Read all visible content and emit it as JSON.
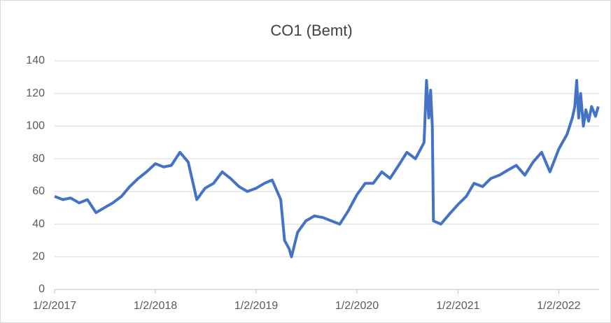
{
  "chart_data": {
    "type": "line",
    "title": "CO1  (Bemt)",
    "x": [
      "2017-01-02",
      "2017-02-01",
      "2017-03-01",
      "2017-04-01",
      "2017-05-01",
      "2017-06-01",
      "2017-07-01",
      "2017-08-01",
      "2017-09-01",
      "2017-10-01",
      "2017-11-01",
      "2017-12-01",
      "2018-01-02",
      "2018-02-01",
      "2018-03-01",
      "2018-04-01",
      "2018-05-01",
      "2018-06-01",
      "2018-07-01",
      "2018-08-01",
      "2018-09-01",
      "2018-10-01",
      "2018-11-01",
      "2018-12-01",
      "2019-01-02",
      "2019-02-01",
      "2019-03-01",
      "2019-04-01",
      "2019-04-15",
      "2019-05-01",
      "2019-05-10",
      "2019-06-01",
      "2019-07-01",
      "2019-08-01",
      "2019-09-01",
      "2019-10-01",
      "2019-11-01",
      "2019-12-01",
      "2020-01-02",
      "2020-02-01",
      "2020-03-01",
      "2020-04-01",
      "2020-05-01",
      "2020-06-01",
      "2020-07-01",
      "2020-08-01",
      "2020-09-01",
      "2020-09-10",
      "2020-09-18",
      "2020-09-25",
      "2020-10-01",
      "2020-10-05",
      "2020-11-01",
      "2020-12-01",
      "2021-01-02",
      "2021-02-01",
      "2021-03-01",
      "2021-04-01",
      "2021-05-01",
      "2021-06-01",
      "2021-07-01",
      "2021-08-01",
      "2021-09-01",
      "2021-10-01",
      "2021-11-01",
      "2021-12-01",
      "2022-01-02",
      "2022-02-01",
      "2022-02-20",
      "2022-03-01",
      "2022-03-08",
      "2022-03-15",
      "2022-03-22",
      "2022-04-01",
      "2022-04-10",
      "2022-04-20",
      "2022-05-01",
      "2022-05-15",
      "2022-05-25"
    ],
    "series": [
      {
        "name": "CO1",
        "color": "#4472c4",
        "values": [
          57,
          55,
          56,
          53,
          55,
          47,
          50,
          53,
          57,
          63,
          68,
          72,
          77,
          75,
          76,
          84,
          78,
          55,
          62,
          65,
          72,
          68,
          63,
          60,
          62,
          65,
          67,
          55,
          30,
          25,
          20,
          35,
          42,
          45,
          44,
          42,
          40,
          48,
          58,
          65,
          65,
          72,
          68,
          76,
          84,
          80,
          90,
          128,
          105,
          122,
          100,
          42,
          40,
          46,
          52,
          57,
          65,
          63,
          68,
          70,
          73,
          76,
          70,
          78,
          84,
          72,
          86,
          95,
          105,
          112,
          128,
          105,
          120,
          100,
          110,
          103,
          112,
          106,
          112
        ]
      }
    ],
    "xlim": [
      "2017-01-02",
      "2022-05-28"
    ],
    "xticks": [
      {
        "value": "2017-01-02",
        "label": "1/2/2017"
      },
      {
        "value": "2018-01-02",
        "label": "1/2/2018"
      },
      {
        "value": "2019-01-02",
        "label": "1/2/2019"
      },
      {
        "value": "2020-01-02",
        "label": "1/2/2020"
      },
      {
        "value": "2021-01-02",
        "label": "1/2/2021"
      },
      {
        "value": "2022-01-02",
        "label": "1/2/2022"
      }
    ],
    "ylim": [
      0,
      140
    ],
    "yticks": [
      0,
      20,
      40,
      60,
      80,
      100,
      120,
      140
    ],
    "grid": true
  }
}
